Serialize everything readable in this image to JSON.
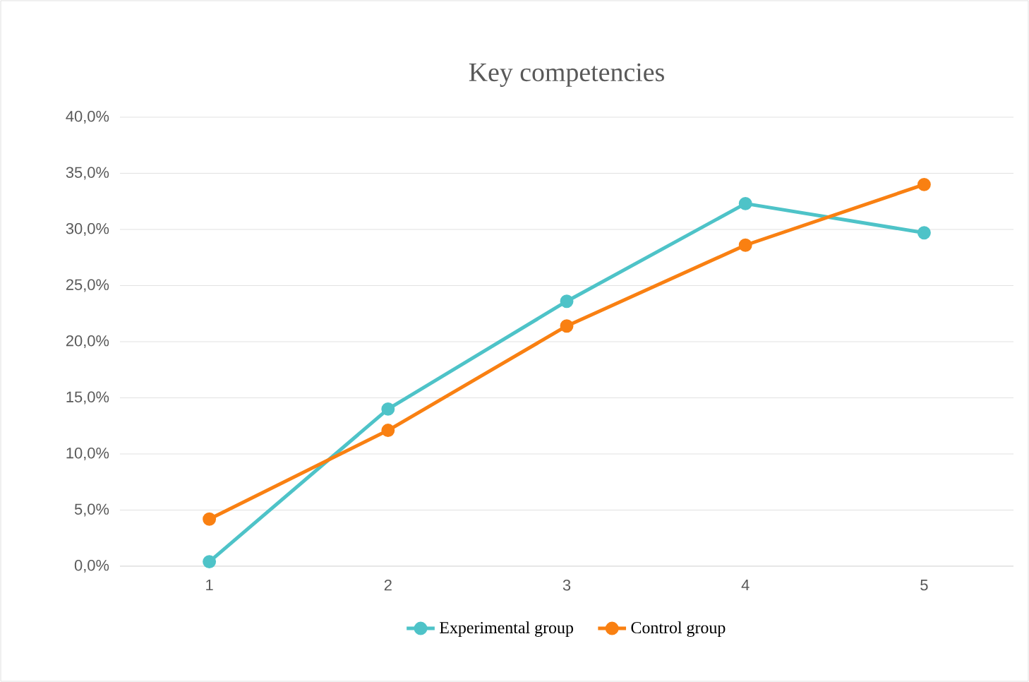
{
  "chart_data": {
    "type": "line",
    "title": "Key competencies",
    "categories": [
      "1",
      "2",
      "3",
      "4",
      "5"
    ],
    "series": [
      {
        "name": "Experimental group",
        "color": "#4ec3c8",
        "values": [
          0.4,
          14.0,
          23.6,
          32.3,
          29.7
        ]
      },
      {
        "name": "Control group",
        "color": "#f98012",
        "values": [
          4.2,
          12.1,
          21.4,
          28.6,
          34.0
        ]
      }
    ],
    "ylim": [
      0,
      40
    ],
    "yticks": [
      {
        "value": 0,
        "label": "0,0%"
      },
      {
        "value": 5,
        "label": "5,0%"
      },
      {
        "value": 10,
        "label": "10,0%"
      },
      {
        "value": 15,
        "label": "15,0%"
      },
      {
        "value": 20,
        "label": "20,0%"
      },
      {
        "value": 25,
        "label": "25,0%"
      },
      {
        "value": 30,
        "label": "30,0%"
      },
      {
        "value": 35,
        "label": "35,0%"
      },
      {
        "value": 40,
        "label": "40,0%"
      }
    ],
    "grid": "y",
    "legend": "bottom",
    "marker": "circle",
    "line_style": "solid"
  }
}
